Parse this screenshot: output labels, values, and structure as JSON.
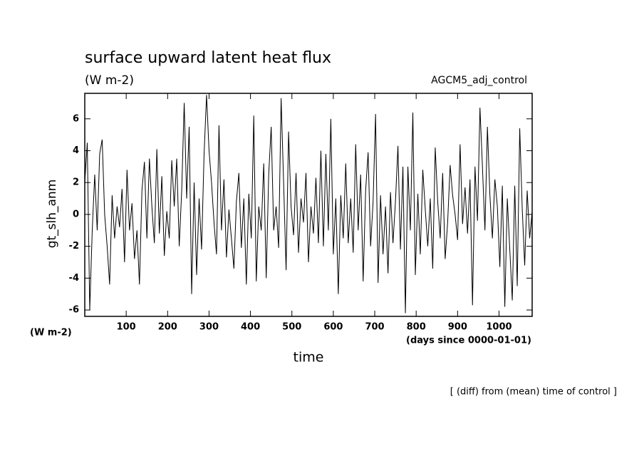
{
  "chart_data": {
    "type": "line",
    "title": "surface upward latent heat flux",
    "subtitle": "(W m-2)",
    "annotation": "AGCM5_adj_control",
    "y_label": "gt_slh_anm",
    "y_units": "(W m-2)",
    "x_label": "time",
    "x_units": "(days since 0000-01-01)",
    "footnote": "[ (diff) from (mean) time of control ]",
    "color": "#000000",
    "x": [
      0,
      6,
      12,
      18,
      24,
      30,
      36,
      42,
      48,
      54,
      60,
      66,
      72,
      78,
      84,
      90,
      96,
      102,
      108,
      114,
      120,
      126,
      132,
      138,
      144,
      150,
      156,
      162,
      168,
      174,
      180,
      186,
      192,
      198,
      204,
      210,
      216,
      222,
      228,
      234,
      240,
      246,
      252,
      258,
      264,
      270,
      276,
      282,
      288,
      294,
      300,
      306,
      312,
      318,
      324,
      330,
      336,
      342,
      348,
      354,
      360,
      366,
      372,
      378,
      384,
      390,
      396,
      402,
      408,
      414,
      420,
      426,
      432,
      438,
      444,
      450,
      456,
      462,
      468,
      474,
      480,
      486,
      492,
      498,
      504,
      510,
      516,
      522,
      528,
      534,
      540,
      546,
      552,
      558,
      564,
      570,
      576,
      582,
      588,
      594,
      600,
      606,
      612,
      618,
      624,
      630,
      636,
      642,
      648,
      654,
      660,
      666,
      672,
      678,
      684,
      690,
      696,
      702,
      708,
      714,
      720,
      726,
      732,
      738,
      744,
      750,
      756,
      762,
      768,
      774,
      780,
      786,
      792,
      798,
      804,
      810,
      816,
      822,
      828,
      834,
      840,
      846,
      852,
      858,
      864,
      870,
      876,
      882,
      888,
      894,
      900,
      906,
      912,
      918,
      924,
      930,
      936,
      942,
      948,
      954,
      960,
      966,
      972,
      978,
      984,
      990,
      996,
      1002,
      1008,
      1014,
      1020,
      1026,
      1032,
      1038,
      1044,
      1050,
      1056,
      1062,
      1068,
      1074,
      1080
    ],
    "values": [
      2,
      4.5,
      -6,
      -1,
      2.5,
      -1,
      3.8,
      4.7,
      0,
      -2,
      -4.4,
      1.2,
      -1.5,
      0.5,
      -0.8,
      1.6,
      -3,
      2.8,
      -1,
      0.7,
      -2.8,
      -1,
      -4.4,
      1.5,
      3.3,
      -1.5,
      3.5,
      0.5,
      -1.8,
      4.1,
      -1.2,
      2.4,
      -2.6,
      0.2,
      -1.5,
      3.4,
      0.5,
      3.5,
      -2,
      1.5,
      7,
      1,
      5.5,
      -5,
      2,
      -3.8,
      1,
      -2.2,
      3.8,
      7.5,
      4,
      2,
      -0.5,
      -2.5,
      5.6,
      -1,
      2.2,
      -2.7,
      0.3,
      -1.5,
      -3.4,
      0.8,
      2.6,
      -2.1,
      1,
      -4.4,
      1.3,
      -1.5,
      6.2,
      -4.2,
      0.5,
      -1,
      3.2,
      -4,
      2.5,
      5.5,
      -1,
      0.5,
      -2.1,
      7.3,
      2,
      -3.5,
      5.2,
      0.5,
      -1.3,
      2.6,
      -2.4,
      1,
      -0.5,
      2.6,
      -3,
      0.5,
      -1.2,
      2.3,
      -1.8,
      4,
      -2,
      3.8,
      -1,
      6,
      -2.5,
      1,
      -5,
      1.2,
      -1.5,
      3.2,
      -1.8,
      1,
      -2.4,
      4.4,
      -1,
      2.5,
      -4.2,
      1.5,
      3.9,
      -2,
      0.8,
      6.3,
      -4.3,
      1.2,
      -2.5,
      0.5,
      -3.7,
      1.4,
      -1.8,
      0.8,
      4.3,
      -2.2,
      3,
      -6.2,
      3,
      -1,
      6.4,
      -3.8,
      1.3,
      -2.5,
      2.8,
      0.3,
      -2,
      1,
      -3.4,
      4.2,
      0.8,
      -1.5,
      2.6,
      -2.8,
      -0.5,
      3.1,
      1.2,
      0,
      -1.6,
      4.4,
      -0.6,
      1.7,
      -1.2,
      2.2,
      -5.7,
      3,
      -0.4,
      6.7,
      3,
      -1,
      5.5,
      1.2,
      -1.5,
      2.2,
      0.5,
      -3.3,
      1.8,
      -5.8,
      1,
      -2.2,
      -5.4,
      1.8,
      -4.5,
      5.4,
      0.4,
      -3.2,
      1.5,
      -1.5,
      0.2
    ],
    "xlim": [
      0,
      1080
    ],
    "ylim": [
      -6.4,
      7.6
    ],
    "xticks": [
      100,
      200,
      300,
      400,
      500,
      600,
      700,
      800,
      900,
      1000
    ],
    "yticks": [
      -6,
      -4,
      -2,
      0,
      2,
      4,
      6
    ]
  }
}
